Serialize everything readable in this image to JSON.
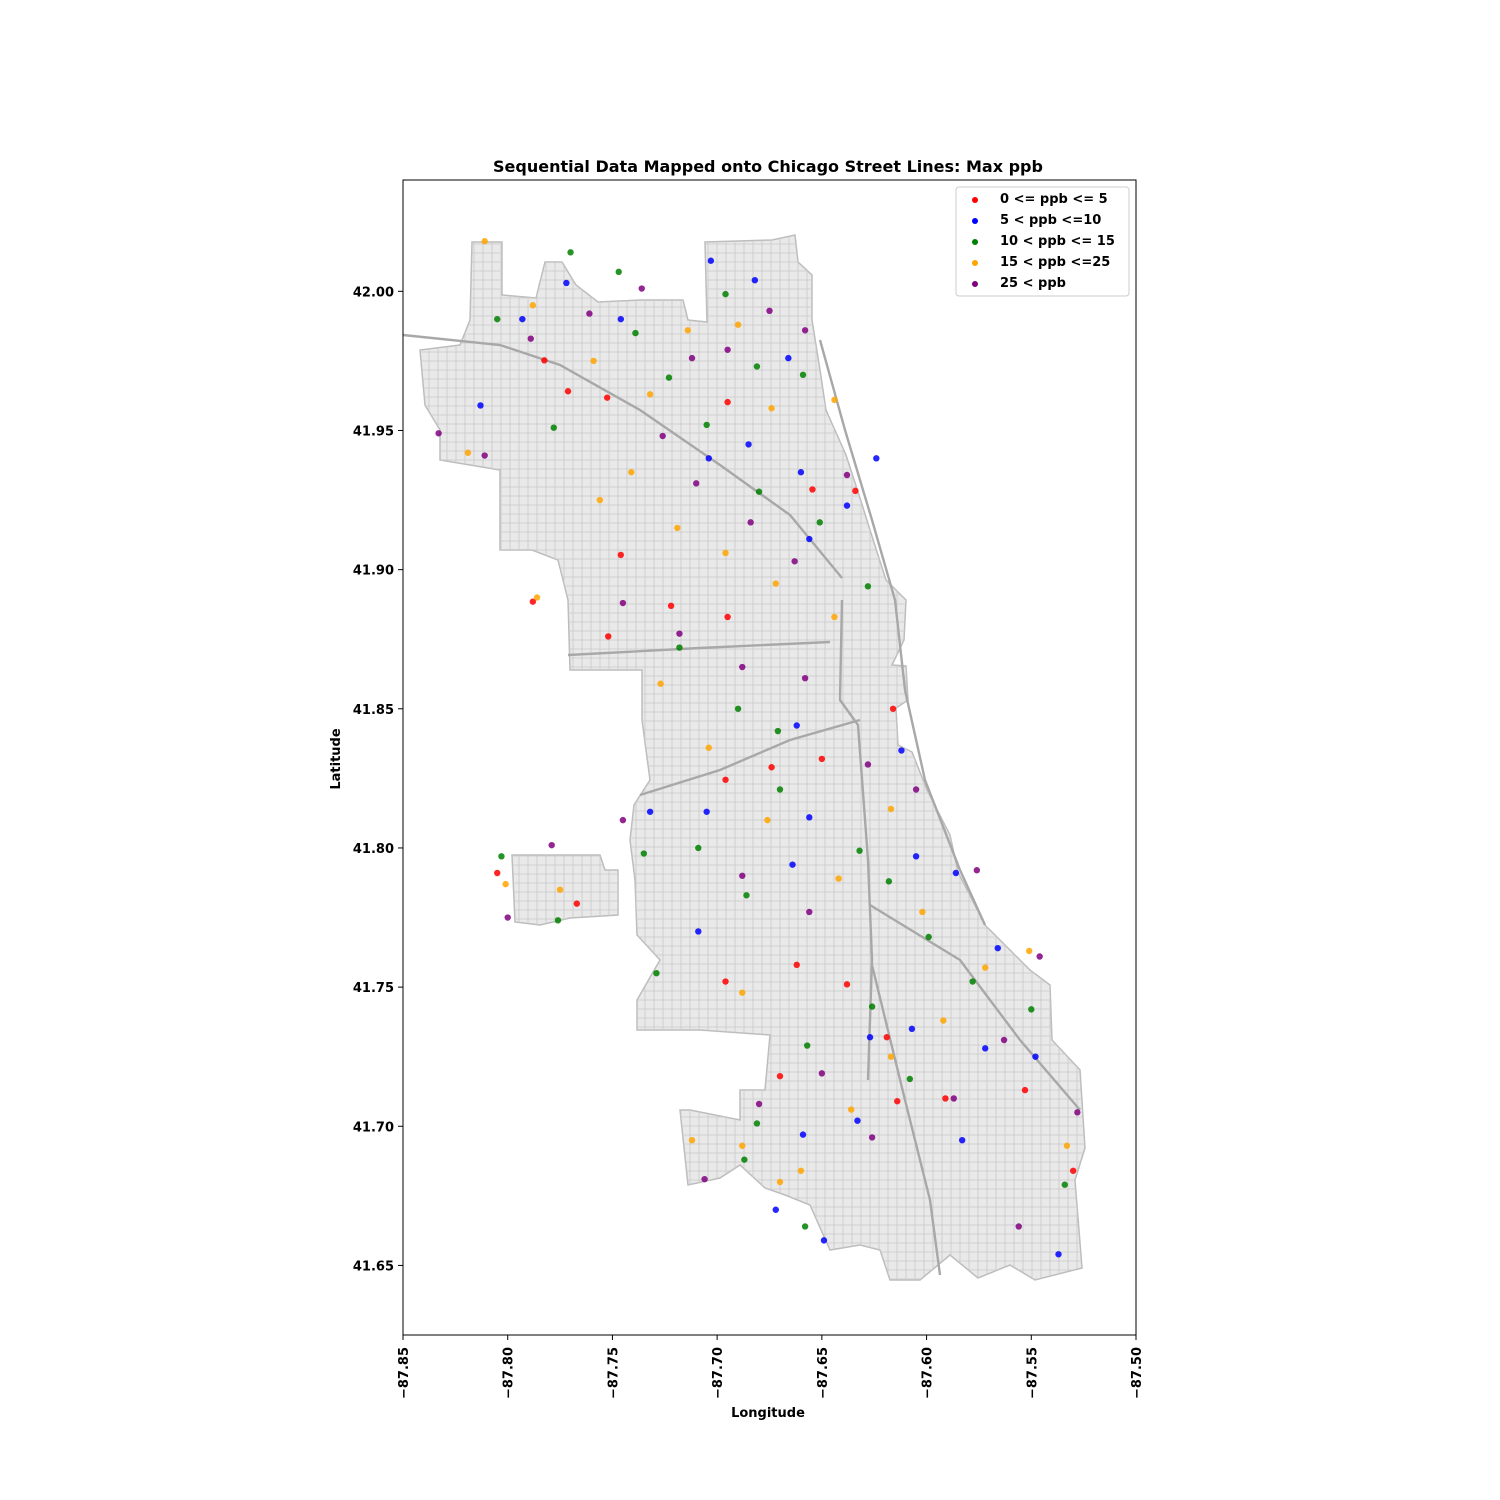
{
  "chart_data": {
    "type": "scatter",
    "title": "Sequential Data Mapped onto Chicago Street Lines: Max ppb",
    "xlabel": "Longitude",
    "ylabel": "Latitude",
    "xlim": [
      -87.85,
      -87.5
    ],
    "ylim": [
      41.625,
      42.04
    ],
    "x_ticks": [
      -87.85,
      -87.8,
      -87.75,
      -87.7,
      -87.65,
      -87.6,
      -87.55,
      -87.5
    ],
    "x_tick_labels": [
      "−87.85",
      "−87.80",
      "−87.75",
      "−87.70",
      "−87.65",
      "−87.60",
      "−87.55",
      "−87.50"
    ],
    "y_ticks": [
      41.65,
      41.7,
      41.75,
      41.8,
      41.85,
      41.9,
      41.95,
      42.0
    ],
    "y_tick_labels": [
      "41.65",
      "41.70",
      "41.75",
      "41.80",
      "41.85",
      "41.90",
      "41.95",
      "42.00"
    ],
    "grid": false,
    "legend_position": "top-right",
    "background": "Chicago street lines (gray)",
    "series": [
      {
        "name": "0 <= ppb <= 5",
        "color": "#ff0000",
        "points": [
          [
            -87.7825,
            41.9752
          ],
          [
            -87.7712,
            41.9641
          ],
          [
            -87.7525,
            41.9618
          ],
          [
            -87.695,
            41.9602
          ],
          [
            -87.6545,
            41.9288
          ],
          [
            -87.634,
            41.9283
          ],
          [
            -87.746,
            41.9053
          ],
          [
            -87.788,
            41.8885
          ],
          [
            -87.752,
            41.876
          ],
          [
            -87.696,
            41.8245
          ],
          [
            -87.674,
            41.829
          ],
          [
            -87.805,
            41.791
          ],
          [
            -87.767,
            41.78
          ],
          [
            -87.696,
            41.752
          ],
          [
            -87.662,
            41.758
          ],
          [
            -87.638,
            41.751
          ],
          [
            -87.619,
            41.732
          ],
          [
            -87.591,
            41.71
          ],
          [
            -87.553,
            41.713
          ],
          [
            -87.53,
            41.684
          ],
          [
            -87.67,
            41.718
          ],
          [
            -87.695,
            41.883
          ],
          [
            -87.616,
            41.85
          ],
          [
            -87.65,
            41.832
          ],
          [
            -87.722,
            41.887
          ],
          [
            -87.614,
            41.709
          ]
        ]
      },
      {
        "name": "5 < ppb <=10",
        "color": "#0000ff",
        "points": [
          [
            -87.813,
            41.959
          ],
          [
            -87.793,
            41.99
          ],
          [
            -87.772,
            42.003
          ],
          [
            -87.746,
            41.99
          ],
          [
            -87.703,
            42.011
          ],
          [
            -87.682,
            42.004
          ],
          [
            -87.666,
            41.976
          ],
          [
            -87.704,
            41.94
          ],
          [
            -87.685,
            41.945
          ],
          [
            -87.66,
            41.935
          ],
          [
            -87.624,
            41.94
          ],
          [
            -87.638,
            41.923
          ],
          [
            -87.656,
            41.911
          ],
          [
            -87.662,
            41.844
          ],
          [
            -87.705,
            41.813
          ],
          [
            -87.656,
            41.811
          ],
          [
            -87.664,
            41.794
          ],
          [
            -87.605,
            41.797
          ],
          [
            -87.586,
            41.791
          ],
          [
            -87.627,
            41.732
          ],
          [
            -87.607,
            41.735
          ],
          [
            -87.572,
            41.728
          ],
          [
            -87.566,
            41.764
          ],
          [
            -87.548,
            41.725
          ],
          [
            -87.537,
            41.654
          ],
          [
            -87.672,
            41.67
          ],
          [
            -87.649,
            41.659
          ],
          [
            -87.732,
            41.813
          ],
          [
            -87.709,
            41.77
          ],
          [
            -87.659,
            41.697
          ],
          [
            -87.612,
            41.835
          ],
          [
            -87.583,
            41.695
          ],
          [
            -87.633,
            41.702
          ]
        ]
      },
      {
        "name": "10 < ppb <= 15",
        "color": "#008000",
        "points": [
          [
            -87.805,
            41.99
          ],
          [
            -87.77,
            42.014
          ],
          [
            -87.747,
            42.007
          ],
          [
            -87.739,
            41.985
          ],
          [
            -87.696,
            41.999
          ],
          [
            -87.681,
            41.973
          ],
          [
            -87.659,
            41.97
          ],
          [
            -87.723,
            41.969
          ],
          [
            -87.705,
            41.952
          ],
          [
            -87.68,
            41.928
          ],
          [
            -87.651,
            41.917
          ],
          [
            -87.628,
            41.894
          ],
          [
            -87.718,
            41.872
          ],
          [
            -87.69,
            41.85
          ],
          [
            -87.671,
            41.842
          ],
          [
            -87.67,
            41.821
          ],
          [
            -87.709,
            41.8
          ],
          [
            -87.632,
            41.799
          ],
          [
            -87.599,
            41.768
          ],
          [
            -87.578,
            41.752
          ],
          [
            -87.608,
            41.717
          ],
          [
            -87.55,
            41.742
          ],
          [
            -87.534,
            41.679
          ],
          [
            -87.687,
            41.688
          ],
          [
            -87.658,
            41.664
          ],
          [
            -87.681,
            41.701
          ],
          [
            -87.735,
            41.798
          ],
          [
            -87.803,
            41.797
          ],
          [
            -87.776,
            41.774
          ],
          [
            -87.618,
            41.788
          ],
          [
            -87.626,
            41.743
          ],
          [
            -87.657,
            41.729
          ],
          [
            -87.686,
            41.783
          ],
          [
            -87.729,
            41.755
          ],
          [
            -87.778,
            41.951
          ]
        ]
      },
      {
        "name": "15 < ppb <=25",
        "color": "#ffa500",
        "points": [
          [
            -87.811,
            42.018
          ],
          [
            -87.788,
            41.995
          ],
          [
            -87.759,
            41.975
          ],
          [
            -87.732,
            41.963
          ],
          [
            -87.714,
            41.986
          ],
          [
            -87.69,
            41.988
          ],
          [
            -87.674,
            41.958
          ],
          [
            -87.644,
            41.961
          ],
          [
            -87.741,
            41.935
          ],
          [
            -87.719,
            41.915
          ],
          [
            -87.696,
            41.906
          ],
          [
            -87.672,
            41.895
          ],
          [
            -87.644,
            41.883
          ],
          [
            -87.727,
            41.859
          ],
          [
            -87.704,
            41.836
          ],
          [
            -87.676,
            41.81
          ],
          [
            -87.642,
            41.789
          ],
          [
            -87.617,
            41.814
          ],
          [
            -87.602,
            41.777
          ],
          [
            -87.572,
            41.757
          ],
          [
            -87.592,
            41.738
          ],
          [
            -87.636,
            41.706
          ],
          [
            -87.66,
            41.684
          ],
          [
            -87.688,
            41.693
          ],
          [
            -87.712,
            41.695
          ],
          [
            -87.819,
            41.942
          ],
          [
            -87.801,
            41.787
          ],
          [
            -87.775,
            41.785
          ],
          [
            -87.786,
            41.89
          ],
          [
            -87.756,
            41.925
          ],
          [
            -87.688,
            41.748
          ],
          [
            -87.617,
            41.725
          ],
          [
            -87.551,
            41.763
          ],
          [
            -87.533,
            41.693
          ],
          [
            -87.67,
            41.68
          ]
        ]
      },
      {
        "name": "25 < ppb",
        "color": "#800080",
        "points": [
          [
            -87.833,
            41.949
          ],
          [
            -87.811,
            41.941
          ],
          [
            -87.789,
            41.983
          ],
          [
            -87.761,
            41.992
          ],
          [
            -87.736,
            42.001
          ],
          [
            -87.712,
            41.976
          ],
          [
            -87.695,
            41.979
          ],
          [
            -87.675,
            41.993
          ],
          [
            -87.658,
            41.986
          ],
          [
            -87.726,
            41.948
          ],
          [
            -87.71,
            41.931
          ],
          [
            -87.684,
            41.917
          ],
          [
            -87.663,
            41.903
          ],
          [
            -87.638,
            41.934
          ],
          [
            -87.745,
            41.888
          ],
          [
            -87.718,
            41.877
          ],
          [
            -87.688,
            41.865
          ],
          [
            -87.658,
            41.861
          ],
          [
            -87.628,
            41.83
          ],
          [
            -87.745,
            41.81
          ],
          [
            -87.688,
            41.79
          ],
          [
            -87.656,
            41.777
          ],
          [
            -87.605,
            41.821
          ],
          [
            -87.576,
            41.792
          ],
          [
            -87.546,
            41.761
          ],
          [
            -87.563,
            41.731
          ],
          [
            -87.587,
            41.71
          ],
          [
            -87.626,
            41.696
          ],
          [
            -87.65,
            41.719
          ],
          [
            -87.68,
            41.708
          ],
          [
            -87.706,
            41.681
          ],
          [
            -87.8,
            41.775
          ],
          [
            -87.779,
            41.801
          ],
          [
            -87.556,
            41.664
          ],
          [
            -87.528,
            41.705
          ]
        ]
      }
    ]
  }
}
